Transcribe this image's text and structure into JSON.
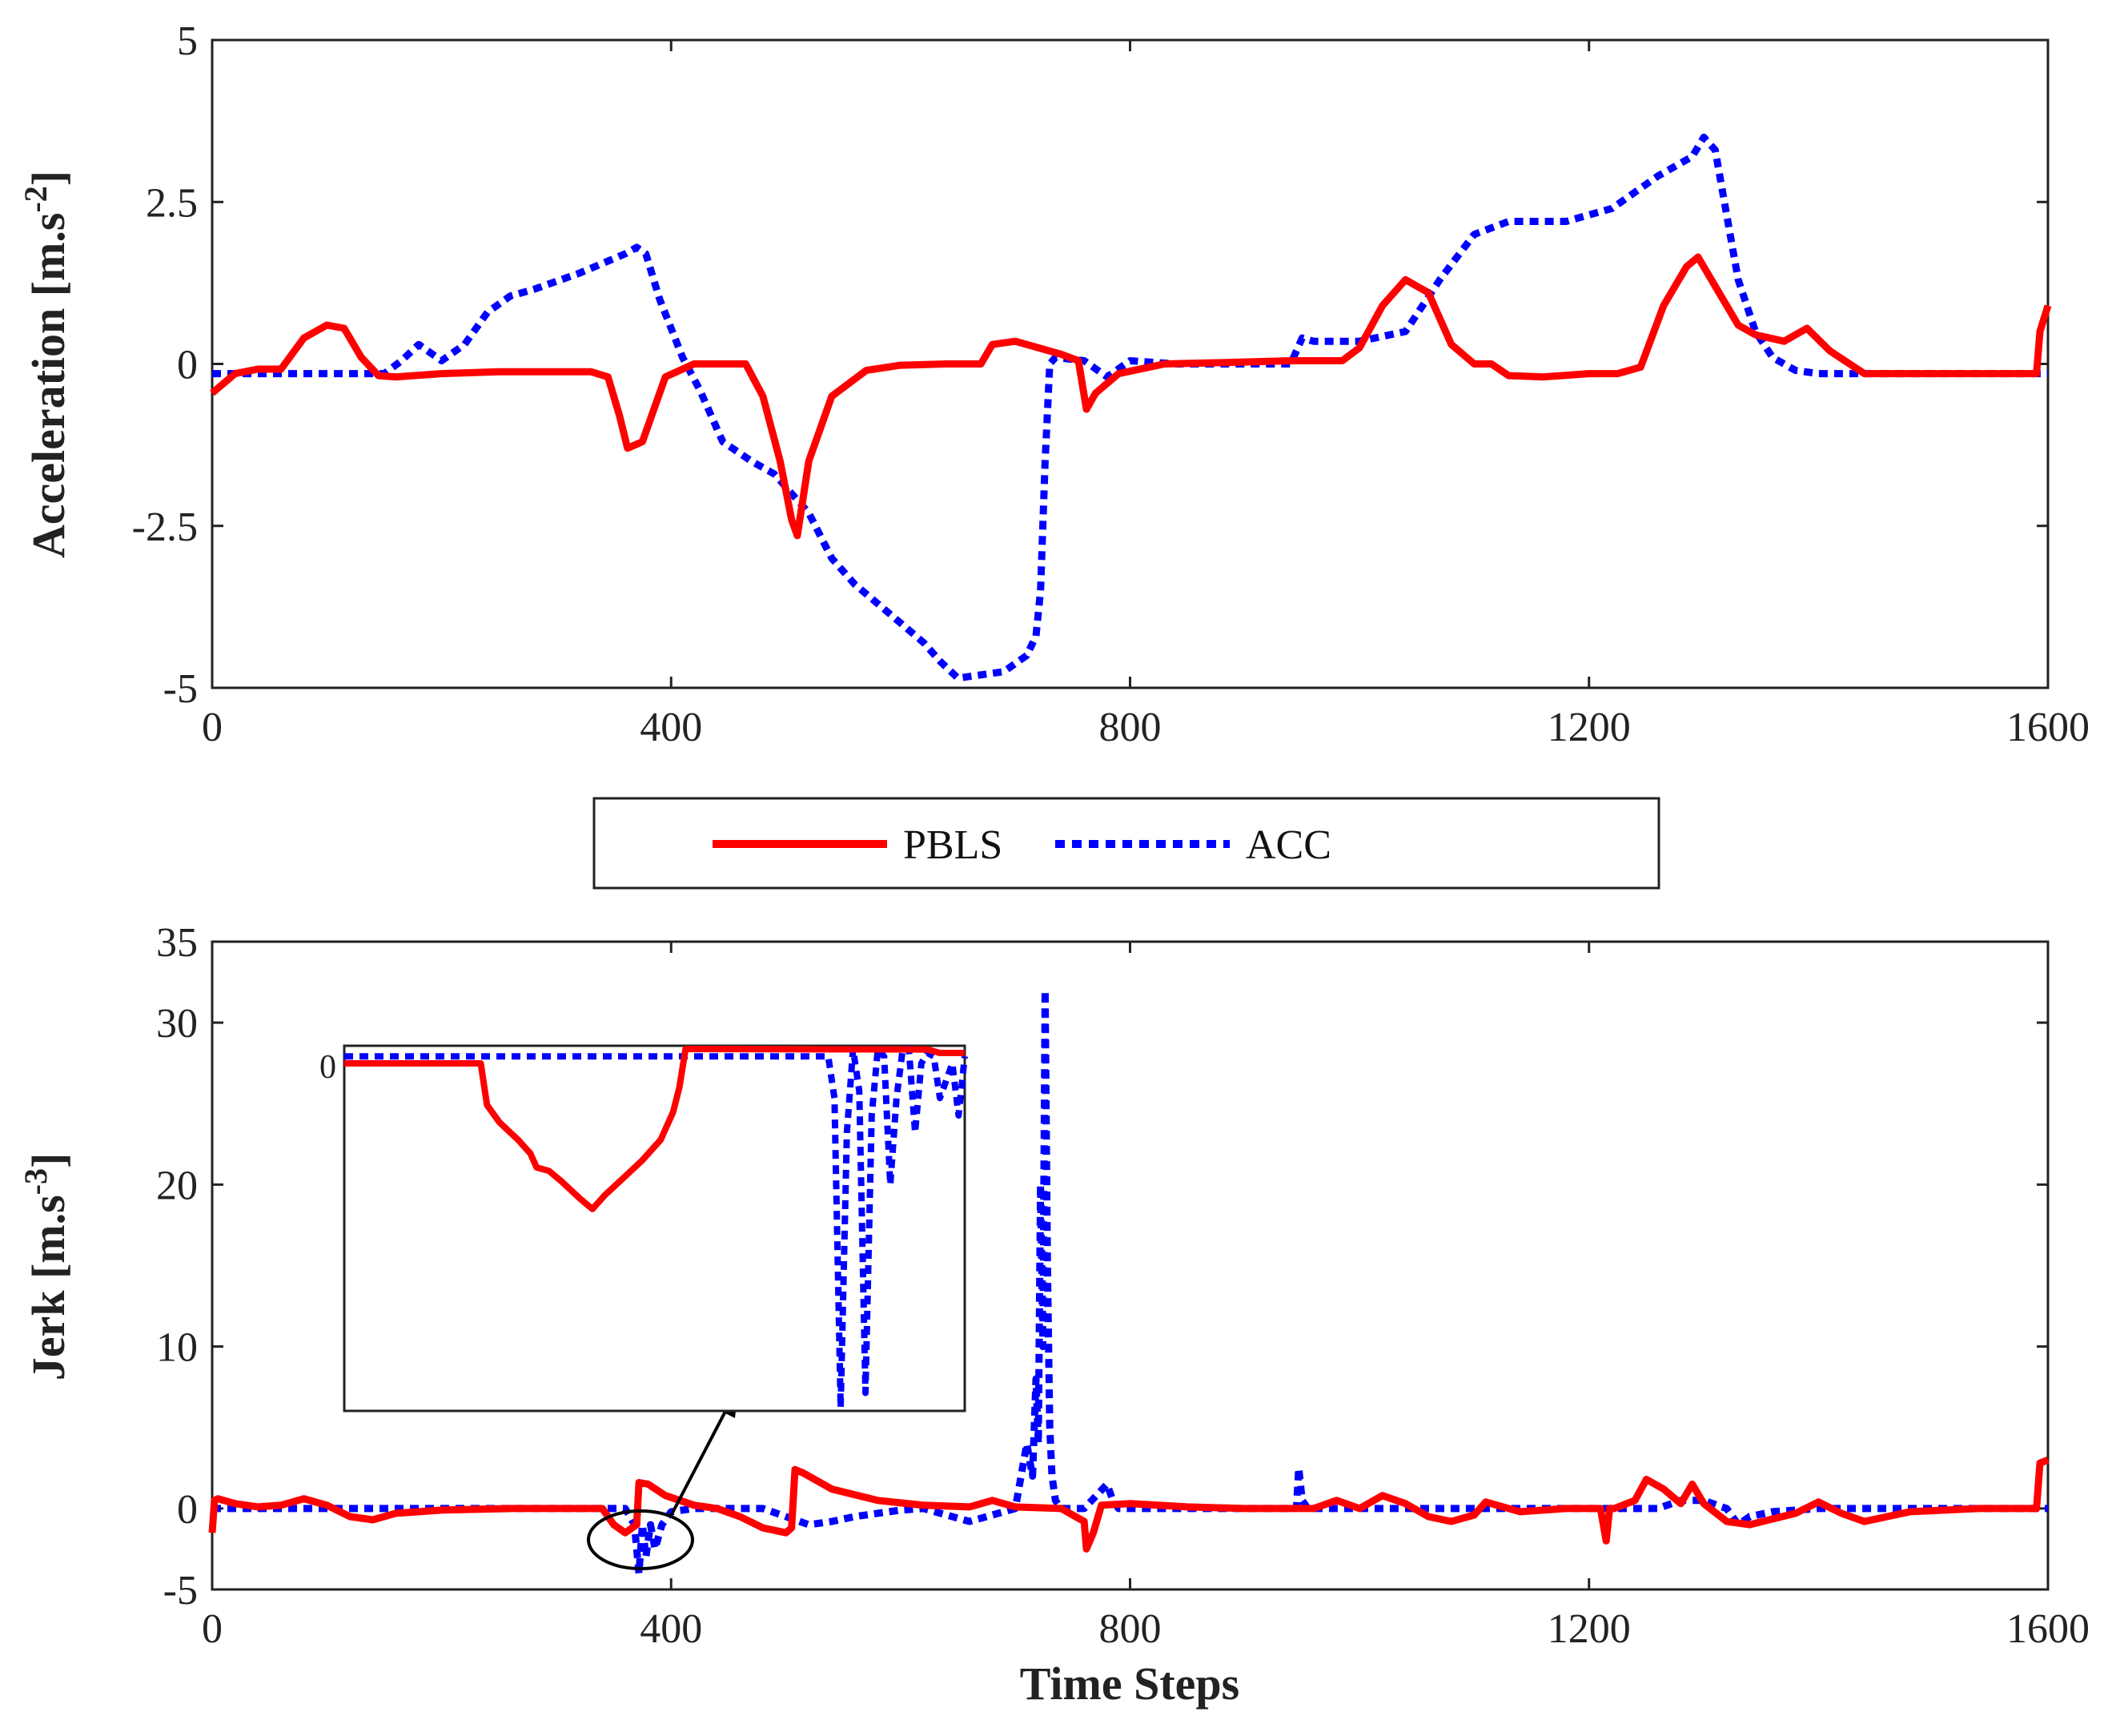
{
  "colors": {
    "pbls": "#ff0000",
    "acc": "#0000ff",
    "axis": "#222222"
  },
  "legend": {
    "entries": [
      "PBLS",
      "ACC"
    ],
    "placement": "between-panels"
  },
  "chart_data": [
    {
      "type": "line",
      "id": "acceleration",
      "xlabel": "",
      "ylabel_main": "Acceleration [m.s",
      "ylabel_sup": "-2",
      "ylabel_end": "]",
      "xlim": [
        0,
        1600
      ],
      "ylim": [
        -5,
        5
      ],
      "xticks": [
        0,
        400,
        800,
        1200,
        1600
      ],
      "xtick_labels": [
        "0",
        "400",
        "800",
        "1200",
        "1600"
      ],
      "yticks": [
        -5,
        -2.5,
        0,
        2.5,
        5
      ],
      "ytick_labels": [
        "-5",
        "-2.5",
        "0",
        "2.5",
        "5"
      ],
      "series": [
        {
          "name": "PBLS",
          "x": [
            0,
            20,
            40,
            60,
            80,
            100,
            115,
            130,
            145,
            160,
            200,
            250,
            300,
            330,
            345,
            355,
            362,
            375,
            395,
            420,
            440,
            465,
            480,
            495,
            505,
            510,
            520,
            540,
            570,
            600,
            640,
            670,
            680,
            700,
            720,
            740,
            755,
            762,
            770,
            790,
            830,
            880,
            940,
            985,
            1000,
            1020,
            1040,
            1060,
            1080,
            1100,
            1115,
            1130,
            1160,
            1200,
            1225,
            1245,
            1265,
            1285,
            1295,
            1310,
            1330,
            1345,
            1370,
            1390,
            1410,
            1440,
            1480,
            1540,
            1590,
            1593,
            1600
          ],
          "values": [
            -0.45,
            -0.15,
            -0.08,
            -0.08,
            0.4,
            0.6,
            0.55,
            0.1,
            -0.18,
            -0.2,
            -0.15,
            -0.12,
            -0.12,
            -0.12,
            -0.2,
            -0.8,
            -1.3,
            -1.2,
            -0.2,
            0.0,
            0.0,
            0.0,
            -0.5,
            -1.5,
            -2.4,
            -2.65,
            -1.5,
            -0.5,
            -0.1,
            -0.02,
            0.0,
            0.0,
            0.3,
            0.35,
            0.25,
            0.15,
            0.05,
            -0.7,
            -0.45,
            -0.15,
            0.0,
            0.02,
            0.05,
            0.05,
            0.25,
            0.9,
            1.3,
            1.1,
            0.3,
            0.0,
            0.0,
            -0.18,
            -0.2,
            -0.15,
            -0.15,
            -0.05,
            0.9,
            1.5,
            1.65,
            1.2,
            0.6,
            0.45,
            0.35,
            0.55,
            0.2,
            -0.15,
            -0.15,
            -0.15,
            -0.15,
            0.5,
            0.9
          ]
        },
        {
          "name": "ACC",
          "x": [
            0,
            50,
            100,
            150,
            165,
            180,
            200,
            220,
            240,
            260,
            280,
            320,
            360,
            370,
            378,
            390,
            410,
            425,
            445,
            470,
            490,
            520,
            540,
            560,
            580,
            600,
            620,
            635,
            650,
            670,
            690,
            710,
            718,
            722,
            726,
            730,
            735,
            760,
            780,
            800,
            840,
            900,
            940,
            950,
            960,
            1000,
            1040,
            1070,
            1100,
            1130,
            1180,
            1220,
            1260,
            1290,
            1300,
            1310,
            1320,
            1330,
            1345,
            1360,
            1380,
            1400,
            1450,
            1500,
            1550,
            1600
          ],
          "values": [
            -0.15,
            -0.15,
            -0.15,
            -0.15,
            0.05,
            0.3,
            0.05,
            0.3,
            0.8,
            1.05,
            1.15,
            1.4,
            1.7,
            1.8,
            1.7,
            1.0,
            0.1,
            -0.4,
            -1.2,
            -1.5,
            -1.7,
            -2.3,
            -3.0,
            -3.4,
            -3.7,
            -4.0,
            -4.3,
            -4.6,
            -4.85,
            -4.8,
            -4.75,
            -4.5,
            -4.2,
            -3.5,
            -1.5,
            0.0,
            0.1,
            0.05,
            -0.2,
            0.05,
            0.0,
            0.0,
            0.0,
            0.4,
            0.35,
            0.35,
            0.5,
            1.3,
            2.0,
            2.2,
            2.2,
            2.4,
            2.9,
            3.2,
            3.5,
            3.3,
            2.3,
            1.3,
            0.5,
            0.1,
            -0.1,
            -0.15,
            -0.15,
            -0.15,
            -0.15,
            -0.15
          ]
        }
      ]
    },
    {
      "type": "line",
      "id": "jerk",
      "xlabel": "Time Steps",
      "ylabel_main": "Jerk [m.s",
      "ylabel_sup": "-3",
      "ylabel_end": "]",
      "xlim": [
        0,
        1600
      ],
      "ylim": [
        -5,
        35
      ],
      "xticks": [
        0,
        400,
        800,
        1200,
        1600
      ],
      "xtick_labels": [
        "0",
        "400",
        "800",
        "1200",
        "1600"
      ],
      "yticks": [
        -5,
        0,
        10,
        20,
        30,
        35
      ],
      "ytick_labels": [
        "-5",
        "0",
        "10",
        "20",
        "30",
        "35"
      ],
      "series": [
        {
          "name": "PBLS",
          "x": [
            0,
            2,
            5,
            20,
            40,
            60,
            80,
            100,
            120,
            140,
            160,
            200,
            260,
            300,
            340,
            350,
            360,
            370,
            372,
            380,
            395,
            420,
            440,
            460,
            480,
            500,
            505,
            508,
            515,
            540,
            580,
            620,
            660,
            680,
            700,
            740,
            760,
            762,
            768,
            775,
            800,
            850,
            900,
            960,
            980,
            1000,
            1020,
            1040,
            1060,
            1080,
            1100,
            1110,
            1140,
            1180,
            1210,
            1215,
            1218,
            1222,
            1240,
            1250,
            1265,
            1280,
            1290,
            1300,
            1320,
            1340,
            1380,
            1400,
            1420,
            1440,
            1480,
            1540,
            1590,
            1593,
            1600
          ],
          "values": [
            -1.5,
            0.5,
            0.6,
            0.3,
            0.1,
            0.2,
            0.6,
            0.2,
            -0.5,
            -0.7,
            -0.3,
            -0.1,
            0.0,
            0.0,
            0.0,
            -1.0,
            -1.5,
            -1.0,
            1.6,
            1.5,
            0.8,
            0.2,
            0.0,
            -0.5,
            -1.2,
            -1.5,
            -1.2,
            2.4,
            2.2,
            1.2,
            0.5,
            0.2,
            0.1,
            0.5,
            0.1,
            0.0,
            -0.8,
            -2.5,
            -1.5,
            0.2,
            0.3,
            0.1,
            0.0,
            0.0,
            0.5,
            0.0,
            0.8,
            0.3,
            -0.5,
            -0.8,
            -0.4,
            0.4,
            -0.2,
            0.0,
            0.0,
            -2.0,
            0.0,
            0.0,
            0.5,
            1.8,
            1.2,
            0.3,
            1.5,
            0.3,
            -0.8,
            -1.0,
            -0.3,
            0.4,
            -0.3,
            -0.8,
            -0.2,
            0.0,
            0.0,
            2.8,
            3.0
          ]
        },
        {
          "name": "ACC",
          "x": [
            0,
            200,
            360,
            368,
            372,
            375,
            378,
            382,
            386,
            392,
            400,
            420,
            450,
            480,
            500,
            520,
            540,
            560,
            580,
            600,
            620,
            640,
            660,
            700,
            710,
            715,
            718,
            720,
            722,
            724,
            726,
            728,
            730,
            732,
            735,
            740,
            760,
            780,
            785,
            790,
            820,
            900,
            945,
            947,
            950,
            955,
            1000,
            1100,
            1200,
            1260,
            1280,
            1300,
            1320,
            1330,
            1340,
            1360,
            1400,
            1450,
            1500,
            1600
          ],
          "values": [
            0.0,
            0.0,
            0.0,
            -1.0,
            -4.0,
            -1.0,
            -3.0,
            -1.0,
            -2.5,
            -1.0,
            -0.2,
            0.0,
            0.0,
            0.0,
            -0.5,
            -1.0,
            -0.8,
            -0.5,
            -0.3,
            -0.1,
            0.0,
            -0.4,
            -0.8,
            0.0,
            4.0,
            2.0,
            8.0,
            4.0,
            20.0,
            10.0,
            32.0,
            15.0,
            5.0,
            2.0,
            0.5,
            0.0,
            0.0,
            1.5,
            0.5,
            0.0,
            0.0,
            0.0,
            0.0,
            2.5,
            0.5,
            0.0,
            0.0,
            0.0,
            0.0,
            0.0,
            0.5,
            0.5,
            0.0,
            -1.0,
            -0.5,
            -0.2,
            0.0,
            0.0,
            0.0,
            0.0
          ]
        }
      ],
      "inset": {
        "ytick_labels": [
          "0"
        ],
        "series": [
          {
            "name": "PBLS",
            "x": [
              0,
              0.22,
              0.23,
              0.25,
              0.28,
              0.3,
              0.31,
              0.33,
              0.35,
              0.38,
              0.4,
              0.42,
              0.45,
              0.48,
              0.51,
              0.53,
              0.54,
              0.55,
              0.94,
              0.96,
              1.0
            ],
            "values": [
              0.0,
              0.0,
              -0.12,
              -0.17,
              -0.22,
              -0.26,
              -0.3,
              -0.31,
              -0.34,
              -0.39,
              -0.42,
              -0.38,
              -0.33,
              -0.28,
              -0.22,
              -0.14,
              -0.07,
              0.05,
              0.04,
              0.03,
              0.03
            ]
          },
          {
            "name": "ACC",
            "x": [
              0,
              0.78,
              0.79,
              0.8,
              0.81,
              0.82,
              0.83,
              0.84,
              0.85,
              0.86,
              0.87,
              0.88,
              0.89,
              0.9,
              0.91,
              0.92,
              0.93,
              0.94,
              0.95,
              0.96,
              0.97,
              0.98,
              0.99,
              1.0
            ],
            "values": [
              0.02,
              0.02,
              -0.1,
              -1.0,
              -0.2,
              0.05,
              -0.08,
              -0.95,
              -0.15,
              0.06,
              0.02,
              -0.35,
              -0.1,
              0.04,
              0.05,
              -0.2,
              0.0,
              0.03,
              0.02,
              -0.1,
              -0.05,
              0.0,
              -0.15,
              0.02
            ]
          }
        ]
      }
    }
  ]
}
